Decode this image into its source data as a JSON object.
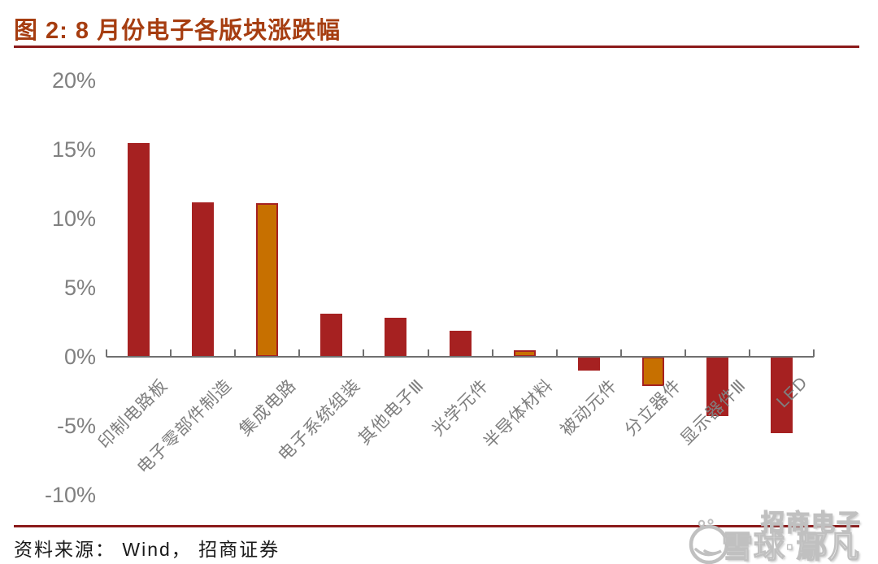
{
  "header": {
    "title": "图 2:  8 月份电子各版块涨跌幅"
  },
  "footer": {
    "source": "资料来源： Wind， 招商证券"
  },
  "watermark": {
    "logo": "xueqiu-snowball-icon",
    "line1": "招商电子",
    "line2": "雪球·鄢凡"
  },
  "colors": {
    "title": "#A63D10",
    "rule": "#8B1A1A",
    "bar_red": "#A62121",
    "bar_orange": "#C77000",
    "orange_border": "#A62121",
    "axis_gray": "#707070",
    "tick_label": "#808080",
    "category_label": "#7F7F7F",
    "source_text": "#1A1A1A",
    "watermark_gray": "#C0C0C0"
  },
  "chart_data": {
    "type": "bar",
    "title": "8 月份电子各版块涨跌幅",
    "categories": [
      "印制电路板",
      "电子零部件制造",
      "集成电路",
      "电子系统组装",
      "其他电子Ⅲ",
      "光学元件",
      "半导体材料",
      "被动元件",
      "分立器件",
      "显示器件Ⅲ",
      "LED"
    ],
    "values": [
      15.5,
      11.2,
      11.1,
      3.1,
      2.8,
      1.9,
      0.5,
      -1.0,
      -2.1,
      -4.3,
      -5.5
    ],
    "highlighted": [
      false,
      false,
      true,
      false,
      false,
      false,
      true,
      false,
      true,
      false,
      false
    ],
    "highlight_meaning": "orange bars with dark red border",
    "xlabel": "",
    "ylabel": "",
    "ylim": [
      -10,
      20
    ],
    "yticks": [
      {
        "label": "20%",
        "value": 20
      },
      {
        "label": "15%",
        "value": 15
      },
      {
        "label": "10%",
        "value": 10
      },
      {
        "label": "5%",
        "value": 5
      },
      {
        "label": "0%",
        "value": 0
      },
      {
        "label": "-5%",
        "value": -5
      },
      {
        "label": "-10%",
        "value": -10
      }
    ],
    "grid": false,
    "legend": null
  }
}
